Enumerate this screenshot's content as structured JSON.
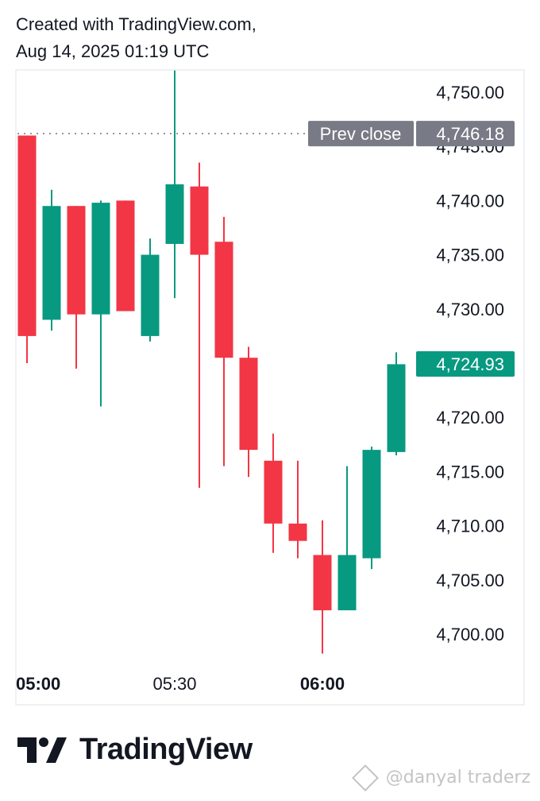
{
  "header": {
    "line1": "Created with TradingView.com,",
    "line2": "Aug 14, 2025 01:19 UTC"
  },
  "footer": {
    "brand": "TradingView",
    "watermark": "@danyal traderz"
  },
  "colors": {
    "up": "#089981",
    "down": "#f23645",
    "prev_close_bg": "#787b86",
    "grid_border": "#e0e3eb",
    "text": "#131722"
  },
  "chart_data": {
    "type": "candlestick",
    "ylim": [
      4698.0,
      4752.0
    ],
    "y_ticks": [
      "4,700.00",
      "4,705.00",
      "4,710.00",
      "4,715.00",
      "4,720.00",
      "4,725.00",
      "4,730.00",
      "4,735.00",
      "4,740.00",
      "4,745.00",
      "4,750.00"
    ],
    "y_tick_values": [
      4700,
      4705,
      4710,
      4715,
      4720,
      4725,
      4730,
      4735,
      4740,
      4745,
      4750
    ],
    "x_ticks": [
      {
        "label": "05:00",
        "index": 0,
        "bold": true
      },
      {
        "label": "05:30",
        "index": 6,
        "bold": false
      },
      {
        "label": "06:00",
        "index": 12,
        "bold": true
      }
    ],
    "candles": [
      {
        "o": 4746.0,
        "h": 4746.0,
        "l": 4725.0,
        "c": 4727.5
      },
      {
        "o": 4729.0,
        "h": 4741.0,
        "l": 4728.0,
        "c": 4739.5
      },
      {
        "o": 4739.5,
        "h": 4739.5,
        "l": 4724.5,
        "c": 4729.5
      },
      {
        "o": 4729.5,
        "h": 4740.0,
        "l": 4721.0,
        "c": 4739.8
      },
      {
        "o": 4740.0,
        "h": 4740.0,
        "l": 4729.8,
        "c": 4729.8
      },
      {
        "o": 4727.5,
        "h": 4736.5,
        "l": 4727.0,
        "c": 4735.0
      },
      {
        "o": 4736.0,
        "h": 4752.0,
        "l": 4731.0,
        "c": 4741.5
      },
      {
        "o": 4741.3,
        "h": 4743.5,
        "l": 4713.5,
        "c": 4735.0
      },
      {
        "o": 4736.2,
        "h": 4738.5,
        "l": 4715.5,
        "c": 4725.5
      },
      {
        "o": 4725.5,
        "h": 4726.5,
        "l": 4714.5,
        "c": 4717.0
      },
      {
        "o": 4716.0,
        "h": 4718.5,
        "l": 4707.5,
        "c": 4710.2
      },
      {
        "o": 4710.2,
        "h": 4716.0,
        "l": 4707.0,
        "c": 4708.6
      },
      {
        "o": 4707.3,
        "h": 4710.5,
        "l": 4698.2,
        "c": 4702.2
      },
      {
        "o": 4702.2,
        "h": 4715.5,
        "l": 4702.2,
        "c": 4707.3
      },
      {
        "o": 4707.0,
        "h": 4717.3,
        "l": 4706.0,
        "c": 4717.0
      },
      {
        "o": 4716.8,
        "h": 4726.0,
        "l": 4716.5,
        "c": 4724.9
      }
    ],
    "prev_close": {
      "label": "Prev close",
      "value": 4746.18,
      "text": "4,746.18"
    },
    "last_price": {
      "value": 4724.93,
      "text": "4,724.93"
    }
  }
}
